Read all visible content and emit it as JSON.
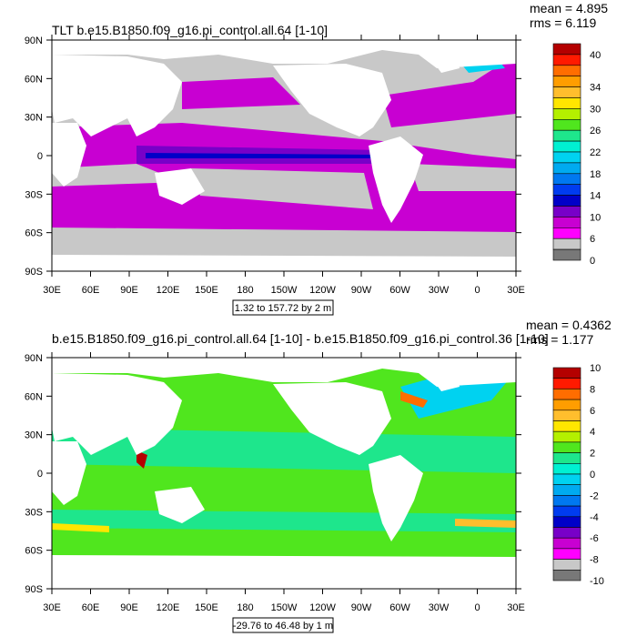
{
  "panels": [
    {
      "title": "TLT b.e15.B1850.f09_g16.pi_control.all.64 [1-10]",
      "stats": {
        "mean": "mean = 4.895",
        "rms": "rms = 6.119"
      },
      "range_note": "1.32 to 157.72 by 2 m",
      "colorbar": {
        "labels": [
          "40",
          "34",
          "30",
          "26",
          "22",
          "18",
          "14",
          "10",
          "6",
          "0"
        ],
        "colors": [
          "#b40000",
          "#ff1a00",
          "#ff6d00",
          "#ff9d00",
          "#ffbe2d",
          "#ffe600",
          "#b4f000",
          "#50e61e",
          "#1ee68c",
          "#00f0d2",
          "#00d2f0",
          "#00aaf0",
          "#0078f0",
          "#003cf0",
          "#0000c8",
          "#7800c8",
          "#c800d2",
          "#ff00ff",
          "#c8c8c8",
          "#787878"
        ],
        "label_steps": [
          1,
          4,
          6,
          8,
          10,
          12,
          14,
          16,
          18,
          20
        ]
      },
      "map_colors": {
        "land": "#ffffff",
        "ice": "#c8c8c8",
        "deep": "#c800d2",
        "mid": "#0078f0",
        "shallow": "#ff6d00"
      }
    },
    {
      "title": "b.e15.B1850.f09_g16.pi_control.all.64 [1-10] - b.e15.B1850.f09_g16.pi_control.36 [1-10]",
      "stats": {
        "mean": "mean = 0.4362",
        "rms": "rms = 1.177"
      },
      "range_note": "-29.76 to 46.48 by 1 m",
      "colorbar": {
        "labels": [
          "10",
          "8",
          "6",
          "4",
          "2",
          "0",
          "-2",
          "-4",
          "-6",
          "-8",
          "-10"
        ],
        "colors": [
          "#b40000",
          "#ff1a00",
          "#ff6d00",
          "#ff9d00",
          "#ffbe2d",
          "#ffe600",
          "#b4f000",
          "#50e61e",
          "#1ee68c",
          "#00f0d2",
          "#00d2f0",
          "#00aaf0",
          "#0078f0",
          "#003cf0",
          "#0000c8",
          "#7800c8",
          "#c800d2",
          "#ff00ff",
          "#c8c8c8",
          "#787878"
        ],
        "label_steps": [
          0,
          2,
          4,
          6,
          8,
          10,
          12,
          14,
          16,
          18,
          20
        ]
      },
      "map_colors": {
        "land": "#ffffff",
        "ocean": "#50e61e",
        "anom_hi": "#b40000",
        "anom_mid": "#ffe600",
        "anom_lo": "#00d2f0"
      }
    }
  ],
  "axes": {
    "xticks": [
      "30E",
      "60E",
      "90E",
      "120E",
      "150E",
      "180",
      "150W",
      "120W",
      "90W",
      "60W",
      "30W",
      "0",
      "30E"
    ],
    "yticks": [
      "90N",
      "60N",
      "30N",
      "0",
      "30S",
      "60S",
      "90S"
    ]
  },
  "chart_data": [
    {
      "type": "heatmap",
      "title": "TLT b.e15.B1850.f09_g16.pi_control.all.64 [1-10]",
      "x": "longitude 30E to 30E (390E)",
      "y": "latitude 90S to 90N",
      "mean": 4.895,
      "rms": 6.119,
      "range": [
        1.32,
        157.72
      ],
      "units": "m",
      "colorbar_levels": [
        0,
        2,
        4,
        6,
        8,
        10,
        12,
        14,
        16,
        18,
        20,
        22,
        24,
        26,
        28,
        30,
        32,
        34,
        36,
        38,
        40
      ]
    },
    {
      "type": "heatmap",
      "title": "b.e15.B1850.f09_g16.pi_control.all.64 [1-10] - b.e15.B1850.f09_g16.pi_control.36 [1-10]",
      "x": "longitude 30E to 30E (390E)",
      "y": "latitude 90S to 90N",
      "mean": 0.4362,
      "rms": 1.177,
      "range": [
        -29.76,
        46.48
      ],
      "units": "m",
      "colorbar_levels": [
        -10,
        -9,
        -8,
        -7,
        -6,
        -5,
        -4,
        -3,
        -2,
        -1,
        0,
        1,
        2,
        3,
        4,
        5,
        6,
        7,
        8,
        9,
        10
      ]
    }
  ]
}
